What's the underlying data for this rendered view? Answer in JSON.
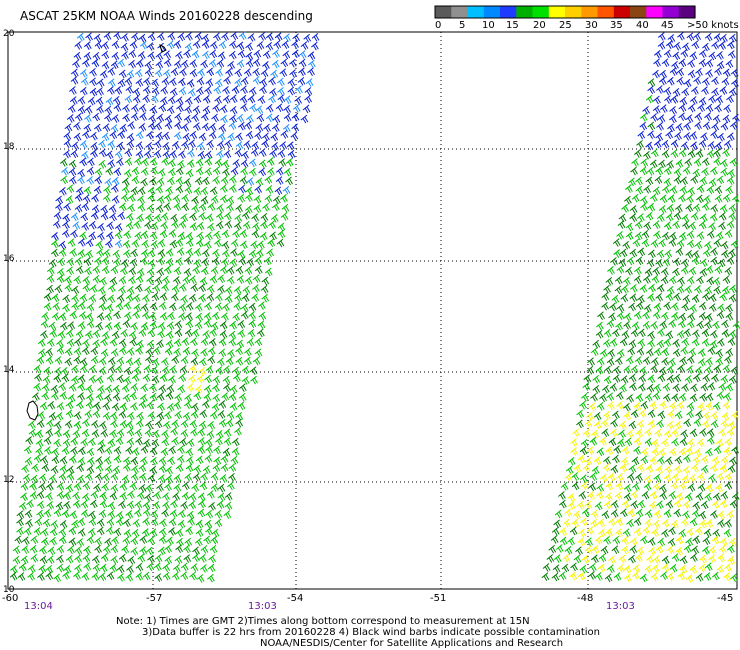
{
  "title": "ASCAT 25KM NOAA Winds 20160228 descending",
  "legend": {
    "labels": [
      "0",
      "5",
      "10",
      "15",
      "20",
      "25",
      "30",
      "35",
      "40",
      "45",
      ">50 knots"
    ],
    "colors": [
      "#5a5a5a",
      "#909090",
      "#00bfff",
      "#0088ff",
      "#1e3cff",
      "#00b000",
      "#00e000",
      "#ffff00",
      "#ffd000",
      "#ff9900",
      "#ff5500",
      "#cc0000",
      "#8b4513",
      "#ff00ff",
      "#9400d3",
      "#5a0080"
    ]
  },
  "axes": {
    "lat_labels": [
      "20",
      "18",
      "16",
      "14",
      "12",
      "10"
    ],
    "lon_labels": [
      "-60",
      "-57",
      "-54",
      "-51",
      "-48",
      "-45"
    ]
  },
  "pass_times": [
    "13:04",
    "13:03",
    "13:03"
  ],
  "notes": {
    "line1": "Note: 1) Times are GMT 2)Times along bottom correspond to measurement at 15N",
    "line2": "3)Data buffer is 22 hrs from 20160228 4) Black wind barbs indicate possible contamination",
    "line3": "NOAA/NESDIS/Center for Satellite Applications and Research"
  },
  "barb_colors": {
    "blue": "#0b1fd0",
    "light_blue": "#1e90ff",
    "green": "#00c000",
    "dark_green": "#007a00",
    "yellow": "#f5f500",
    "black": "#000000"
  }
}
